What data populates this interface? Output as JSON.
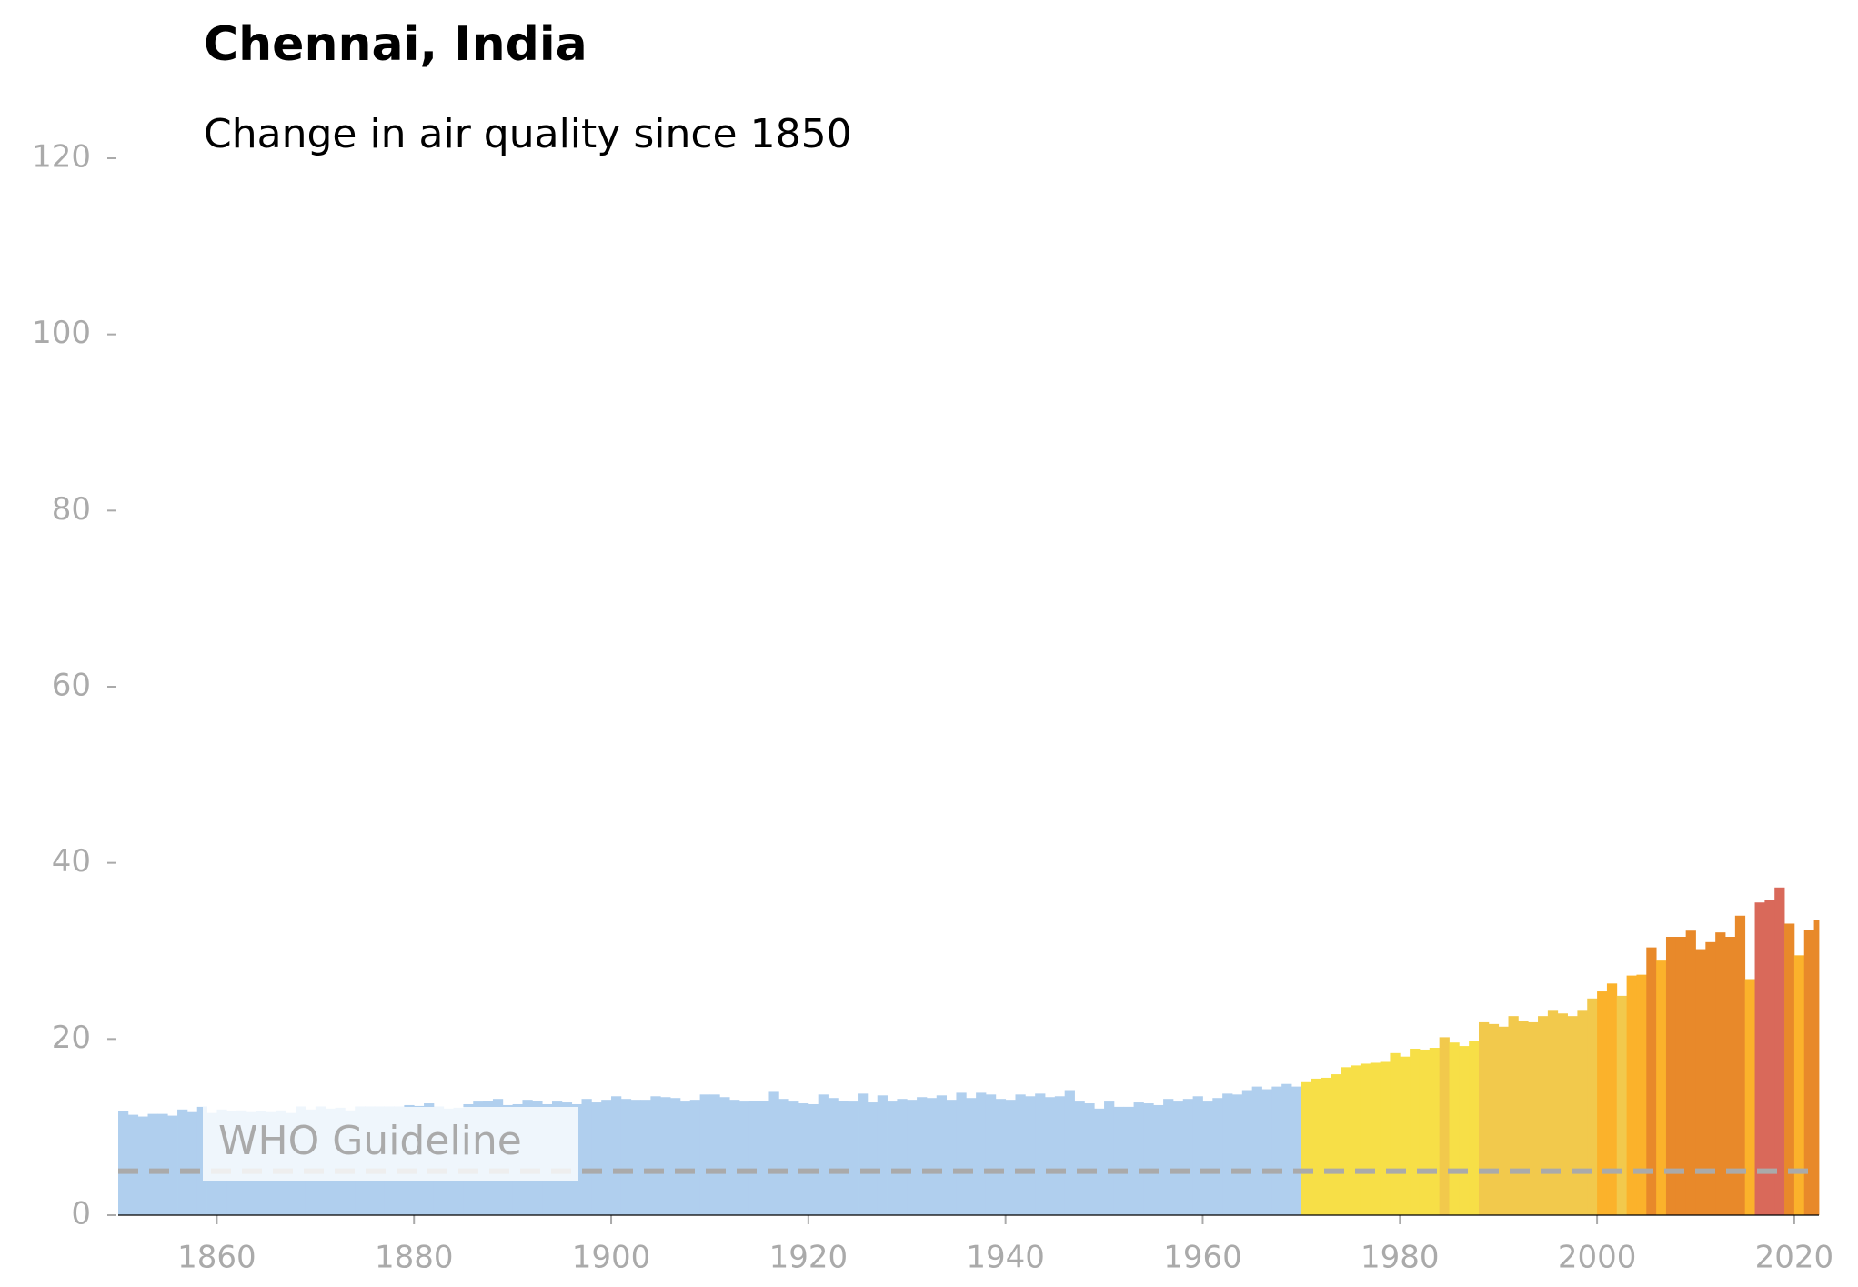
{
  "chart_data": {
    "type": "bar",
    "title": "Chennai, India",
    "subtitle": "Change in air quality since 1850",
    "x": [
      1850,
      1851,
      1852,
      1853,
      1854,
      1855,
      1856,
      1857,
      1858,
      1859,
      1860,
      1861,
      1862,
      1863,
      1864,
      1865,
      1866,
      1867,
      1868,
      1869,
      1870,
      1871,
      1872,
      1873,
      1874,
      1875,
      1876,
      1877,
      1878,
      1879,
      1880,
      1881,
      1882,
      1883,
      1884,
      1885,
      1886,
      1887,
      1888,
      1889,
      1890,
      1891,
      1892,
      1893,
      1894,
      1895,
      1896,
      1897,
      1898,
      1899,
      1900,
      1901,
      1902,
      1903,
      1904,
      1905,
      1906,
      1907,
      1908,
      1909,
      1910,
      1911,
      1912,
      1913,
      1914,
      1915,
      1916,
      1917,
      1918,
      1919,
      1920,
      1921,
      1922,
      1923,
      1924,
      1925,
      1926,
      1927,
      1928,
      1929,
      1930,
      1931,
      1932,
      1933,
      1934,
      1935,
      1936,
      1937,
      1938,
      1939,
      1940,
      1941,
      1942,
      1943,
      1944,
      1945,
      1946,
      1947,
      1948,
      1949,
      1950,
      1951,
      1952,
      1953,
      1954,
      1955,
      1956,
      1957,
      1958,
      1959,
      1960,
      1961,
      1962,
      1963,
      1964,
      1965,
      1966,
      1967,
      1968,
      1969,
      1970,
      1971,
      1972,
      1973,
      1974,
      1975,
      1976,
      1977,
      1978,
      1979,
      1980,
      1981,
      1982,
      1983,
      1984,
      1985,
      1986,
      1987,
      1988,
      1989,
      1990,
      1991,
      1992,
      1993,
      1994,
      1995,
      1996,
      1997,
      1998,
      1999,
      2000,
      2001,
      2002,
      2003,
      2004,
      2005,
      2006,
      2007,
      2008,
      2009,
      2010,
      2011,
      2012,
      2013,
      2014,
      2015,
      2016,
      2017,
      2018,
      2019,
      2020,
      2021,
      2022
    ],
    "values": [
      11.8,
      11.4,
      11.2,
      11.5,
      11.5,
      11.3,
      12.0,
      11.7,
      12.3,
      11.6,
      12.0,
      11.8,
      11.9,
      11.7,
      11.8,
      11.7,
      11.9,
      11.6,
      12.3,
      12.0,
      12.3,
      12.1,
      12.2,
      11.9,
      12.3,
      12.3,
      12.3,
      12.3,
      12.3,
      12.5,
      12.4,
      12.7,
      12.3,
      12.1,
      12.2,
      12.6,
      12.9,
      13.0,
      13.2,
      12.5,
      12.6,
      13.1,
      13.0,
      12.6,
      12.9,
      12.8,
      12.6,
      13.2,
      12.8,
      13.1,
      13.5,
      13.2,
      13.1,
      13.1,
      13.5,
      13.4,
      13.3,
      12.9,
      13.1,
      13.7,
      13.7,
      13.4,
      13.1,
      12.9,
      13.0,
      13.0,
      14.0,
      13.2,
      12.9,
      12.7,
      12.6,
      13.7,
      13.3,
      13.0,
      12.9,
      13.8,
      12.8,
      13.6,
      12.9,
      13.2,
      13.1,
      13.4,
      13.3,
      13.6,
      13.1,
      13.9,
      13.3,
      13.9,
      13.7,
      13.2,
      13.1,
      13.7,
      13.5,
      13.8,
      13.4,
      13.5,
      14.2,
      12.9,
      12.7,
      12.1,
      12.9,
      12.3,
      12.3,
      12.8,
      12.7,
      12.5,
      13.2,
      12.9,
      13.2,
      13.5,
      12.9,
      13.3,
      13.8,
      13.7,
      14.2,
      14.6,
      14.3,
      14.6,
      14.9,
      14.6,
      15.1,
      15.5,
      15.6,
      16.0,
      16.8,
      17.0,
      17.2,
      17.3,
      17.4,
      18.4,
      18.0,
      18.9,
      18.8,
      19.0,
      20.2,
      19.6,
      19.2,
      19.8,
      21.9,
      21.7,
      21.4,
      22.6,
      22.1,
      21.9,
      22.6,
      23.2,
      22.9,
      22.6,
      23.2,
      24.6,
      25.4,
      26.3,
      24.9,
      27.2,
      27.3,
      30.4,
      28.9,
      31.6,
      31.6,
      32.3,
      30.2,
      31.0,
      32.1,
      31.6,
      34.0,
      26.8,
      35.5,
      35.8,
      37.2,
      33.1,
      29.5,
      32.4,
      33.5
    ],
    "colors": [
      "#b0cfee",
      "#b0cfee",
      "#b0cfee",
      "#b0cfee",
      "#b0cfee",
      "#b0cfee",
      "#b0cfee",
      "#b0cfee",
      "#b0cfee",
      "#b0cfee",
      "#b0cfee",
      "#b0cfee",
      "#b0cfee",
      "#b0cfee",
      "#b0cfee",
      "#b0cfee",
      "#b0cfee",
      "#b0cfee",
      "#b0cfee",
      "#b0cfee",
      "#b0cfee",
      "#b0cfee",
      "#b0cfee",
      "#b0cfee",
      "#b0cfee",
      "#b0cfee",
      "#b0cfee",
      "#b0cfee",
      "#b0cfee",
      "#b0cfee",
      "#b0cfee",
      "#b0cfee",
      "#b0cfee",
      "#b0cfee",
      "#b0cfee",
      "#b0cfee",
      "#b0cfee",
      "#b0cfee",
      "#b0cfee",
      "#b0cfee",
      "#b0cfee",
      "#b0cfee",
      "#b0cfee",
      "#b0cfee",
      "#b0cfee",
      "#b0cfee",
      "#b0cfee",
      "#b0cfee",
      "#b0cfee",
      "#b0cfee",
      "#b0cfee",
      "#b0cfee",
      "#b0cfee",
      "#b0cfee",
      "#b0cfee",
      "#b0cfee",
      "#b0cfee",
      "#b0cfee",
      "#b0cfee",
      "#b0cfee",
      "#b0cfee",
      "#b0cfee",
      "#b0cfee",
      "#b0cfee",
      "#b0cfee",
      "#b0cfee",
      "#b0cfee",
      "#b0cfee",
      "#b0cfee",
      "#b0cfee",
      "#b0cfee",
      "#b0cfee",
      "#b0cfee",
      "#b0cfee",
      "#b0cfee",
      "#b0cfee",
      "#b0cfee",
      "#b0cfee",
      "#b0cfee",
      "#b0cfee",
      "#b0cfee",
      "#b0cfee",
      "#b0cfee",
      "#b0cfee",
      "#b0cfee",
      "#b0cfee",
      "#b0cfee",
      "#b0cfee",
      "#b0cfee",
      "#b0cfee",
      "#b0cfee",
      "#b0cfee",
      "#b0cfee",
      "#b0cfee",
      "#b0cfee",
      "#b0cfee",
      "#b0cfee",
      "#b0cfee",
      "#b0cfee",
      "#b0cfee",
      "#b0cfee",
      "#b0cfee",
      "#b0cfee",
      "#b0cfee",
      "#b0cfee",
      "#b0cfee",
      "#b0cfee",
      "#b0cfee",
      "#b0cfee",
      "#b0cfee",
      "#b0cfee",
      "#b0cfee",
      "#b0cfee",
      "#b0cfee",
      "#b0cfee",
      "#b0cfee",
      "#b0cfee",
      "#b0cfee",
      "#b0cfee",
      "#b0cfee",
      "#f7df47",
      "#f7df47",
      "#f7df47",
      "#f7df47",
      "#f7df47",
      "#f7df47",
      "#f7df47",
      "#f7df47",
      "#f7df47",
      "#f7df47",
      "#f7df47",
      "#f7df47",
      "#f7df47",
      "#f7df47",
      "#f2c94c",
      "#f7df47",
      "#f7df47",
      "#f7df47",
      "#f2c94c",
      "#f2c94c",
      "#f2c94c",
      "#f2c94c",
      "#f2c94c",
      "#f2c94c",
      "#f2c94c",
      "#f2c94c",
      "#f2c94c",
      "#f2c94c",
      "#f2c94c",
      "#f2c94c",
      "#fbb22b",
      "#fbb22b",
      "#f2c94c",
      "#fbb22b",
      "#fbb22b",
      "#e8892a",
      "#fbb22b",
      "#e8892a",
      "#e8892a",
      "#e8892a",
      "#e8892a",
      "#e8892a",
      "#e8892a",
      "#e8892a",
      "#e8892a",
      "#fbb22b",
      "#d9695a",
      "#d9695a",
      "#d9695a",
      "#e8892a",
      "#fbb22b",
      "#e8892a",
      "#e8892a"
    ],
    "guideline": {
      "value": 5,
      "label": "WHO Guideline",
      "color": "#aaaaaa"
    },
    "xlim": [
      1850,
      2022.5
    ],
    "xticks": [
      1860,
      1880,
      1900,
      1920,
      1940,
      1960,
      1980,
      2000,
      2020
    ],
    "ylim": [
      0,
      120
    ],
    "yticks": [
      0,
      20,
      40,
      60,
      80,
      100,
      120
    ]
  }
}
